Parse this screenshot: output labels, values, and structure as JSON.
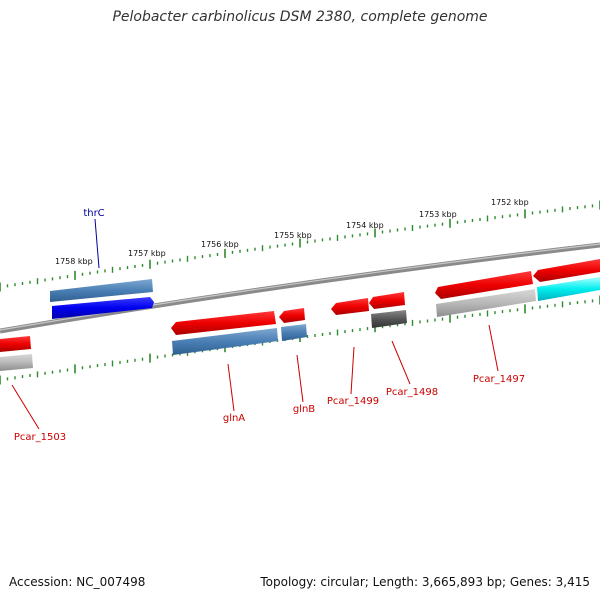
{
  "title": "Pelobacter carbinolicus DSM 2380, complete genome",
  "footer": {
    "accession": "Accession: NC_007498",
    "summary": "Topology: circular; Length: 3,665,893 bp; Genes: 3,415"
  },
  "colors": {
    "label_red": "#cc0000",
    "label_blue": "#000099",
    "tick_green": "#2e8b2e",
    "backbone": "#808080"
  },
  "scale": {
    "labels": [
      "1758 kbp",
      "1757 kbp",
      "1756 kbp",
      "1755 kbp",
      "1754 kbp",
      "1753 kbp",
      "1752 kbp"
    ]
  },
  "genes": [
    {
      "label": "thrC",
      "strand": "forward",
      "color": "blue"
    },
    {
      "label": "Pcar_1503",
      "strand": "reverse",
      "color": "red"
    },
    {
      "label": "glnA",
      "strand": "reverse",
      "color": "red"
    },
    {
      "label": "glnB",
      "strand": "reverse",
      "color": "red"
    },
    {
      "label": "Pcar_1499",
      "strand": "reverse",
      "color": "red"
    },
    {
      "label": "Pcar_1498",
      "strand": "reverse",
      "color": "red"
    },
    {
      "label": "Pcar_1497",
      "strand": "reverse",
      "color": "red"
    }
  ]
}
